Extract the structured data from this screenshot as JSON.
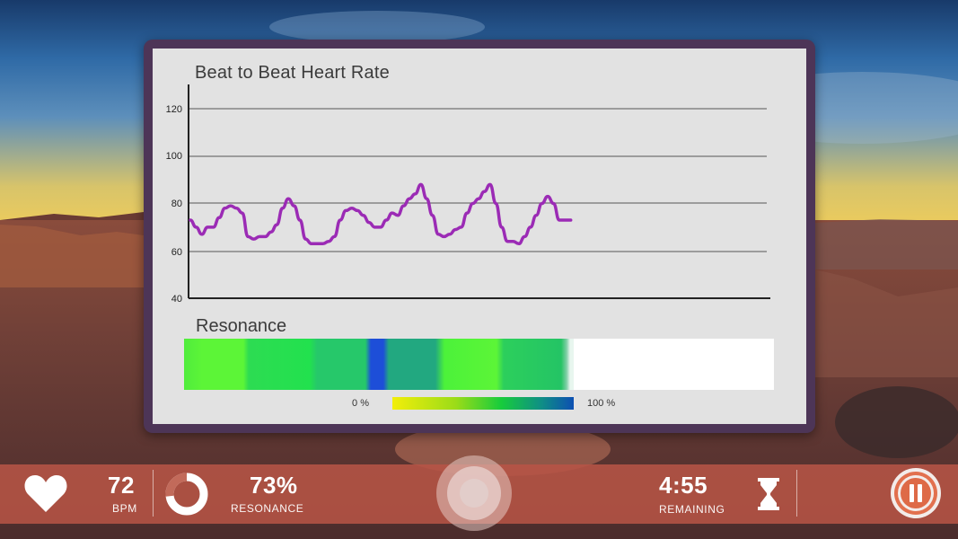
{
  "chart": {
    "title": "Beat to Beat Heart Rate",
    "y_ticks": [
      "120",
      "100",
      "80",
      "60",
      "40"
    ],
    "line_color": "#9b2bb5"
  },
  "chart_data": {
    "type": "line",
    "title": "Beat to Beat Heart Rate",
    "xlabel": "",
    "ylabel": "",
    "ylim": [
      40,
      130
    ],
    "xlim": [
      0,
      100
    ],
    "grid": true,
    "series": [
      {
        "name": "Heart Rate",
        "x": [
          0,
          1,
          2,
          3,
          4,
          5,
          6,
          7,
          8,
          9,
          10,
          11,
          12,
          13,
          14,
          15,
          16,
          17,
          18,
          19,
          20,
          21,
          22,
          23,
          24,
          25,
          26,
          27,
          28,
          29,
          30,
          31,
          32,
          33,
          34,
          35,
          36,
          37,
          38,
          39,
          40,
          41,
          42,
          43,
          44,
          45,
          46,
          47,
          48,
          49,
          50,
          51,
          52,
          53,
          54,
          55,
          56,
          57,
          58,
          59,
          60,
          61,
          62,
          63,
          64,
          65,
          66
        ],
        "values": [
          73,
          70,
          67,
          70,
          70,
          74,
          78,
          79,
          78,
          76,
          66,
          65,
          66,
          66,
          68,
          71,
          78,
          82,
          79,
          73,
          65,
          63,
          63,
          63,
          64,
          66,
          73,
          77,
          78,
          77,
          75,
          72,
          70,
          70,
          73,
          76,
          75,
          79,
          82,
          84,
          88,
          82,
          75,
          67,
          66,
          67,
          69,
          70,
          76,
          80,
          82,
          85,
          88,
          80,
          70,
          64,
          64,
          63,
          66,
          70,
          75,
          80,
          83,
          80,
          73,
          73,
          73
        ]
      }
    ]
  },
  "resonance": {
    "title": "Resonance",
    "legend_min": "0 %",
    "legend_max": "100 %"
  },
  "bottom_bar": {
    "bpm_value": "72",
    "bpm_label": "BPM",
    "resonance_value": "73%",
    "resonance_label": "RESONANCE",
    "resonance_fraction": 0.73,
    "time_value": "4:55",
    "time_label": "REMAINING"
  },
  "icons": {
    "heart": "heart-icon",
    "resonance_ring": "resonance-ring-icon",
    "hourglass": "hourglass-icon",
    "pause": "pause-icon"
  }
}
